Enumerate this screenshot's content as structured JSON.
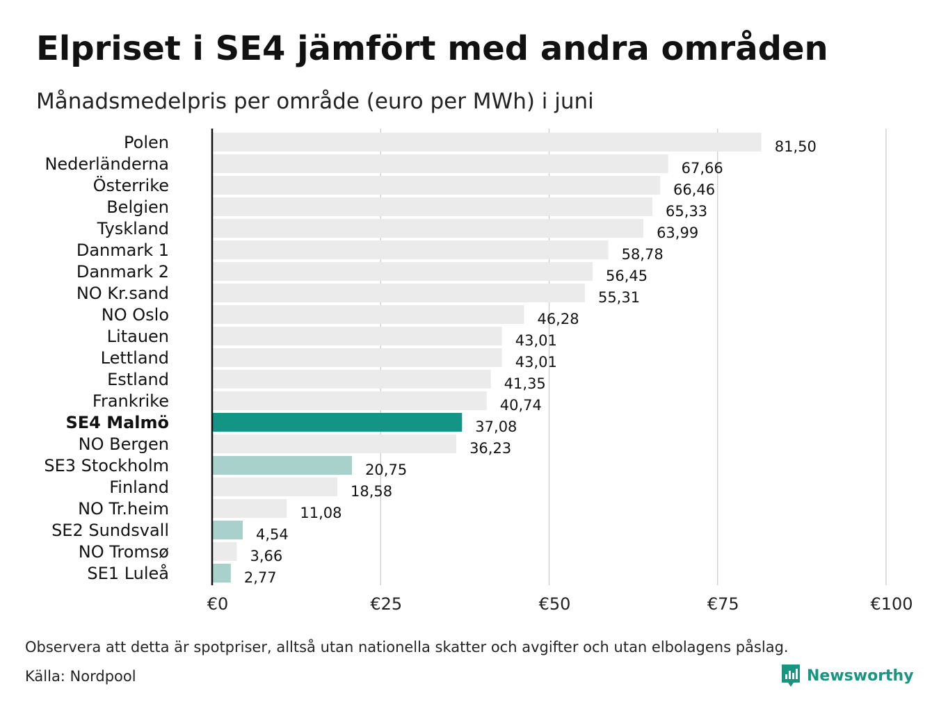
{
  "header": {
    "title": "Elpriset i SE4 jämfört med andra områden",
    "subtitle": "Månadsmedelpris per område (euro per MWh) i juni"
  },
  "footer": {
    "note": "Observera att detta är spotpriser, alltså utan nationella skatter och avgifter och utan elbolagens påslag.",
    "source": "Källa: Nordpool",
    "brand_name": "Newsworthy",
    "brand_icon": "newsworthy-logo-icon",
    "brand_color": "#179580"
  },
  "chart_data": {
    "type": "bar",
    "orientation": "horizontal",
    "title": "Elpriset i SE4 jämfört med andra områden",
    "subtitle": "Månadsmedelpris per område (euro per MWh) i juni",
    "categories": [
      "Polen",
      "Nederländerna",
      "Österrike",
      "Belgien",
      "Tyskland",
      "Danmark  1",
      "Danmark  2",
      "NO Kr.sand",
      "NO Oslo",
      "Litauen",
      "Lettland",
      "Estland",
      "Frankrike",
      "SE4 Malmö",
      "NO Bergen",
      "SE3  Stockholm",
      "Finland",
      "NO Tr.heim",
      "SE2  Sundsvall",
      "NO Tromsø",
      "SE1  Luleå"
    ],
    "values": [
      81.5,
      67.66,
      66.46,
      65.33,
      63.99,
      58.78,
      56.45,
      55.31,
      46.28,
      43.01,
      43.01,
      41.35,
      40.74,
      37.08,
      36.23,
      20.75,
      18.58,
      11.08,
      4.54,
      3.66,
      2.77
    ],
    "value_labels": [
      "81,50",
      "67,66",
      "66,46",
      "65,33",
      "63,99",
      "58,78",
      "56,45",
      "55,31",
      "46,28",
      "43,01",
      "43,01",
      "41,35",
      "40,74",
      "37,08",
      "36,23",
      "20,75",
      "18,58",
      "11,08",
      "4,54",
      "3,66",
      "2,77"
    ],
    "highlight": "SE4 Malmö",
    "secondary_highlight": [
      "SE3  Stockholm",
      "SE2  Sundsvall",
      "SE1  Luleå"
    ],
    "xlim": [
      0,
      100
    ],
    "xticks": [
      0,
      25,
      50,
      75,
      100
    ],
    "xtick_labels": [
      "€0",
      "€25",
      "€50",
      "€75",
      "€100"
    ],
    "grid": true,
    "colors": {
      "default": "#ebebeb",
      "highlight": "#149484",
      "secondary": "#a8d1cb",
      "grid": "#c8c8c8",
      "axis": "#111111"
    }
  }
}
